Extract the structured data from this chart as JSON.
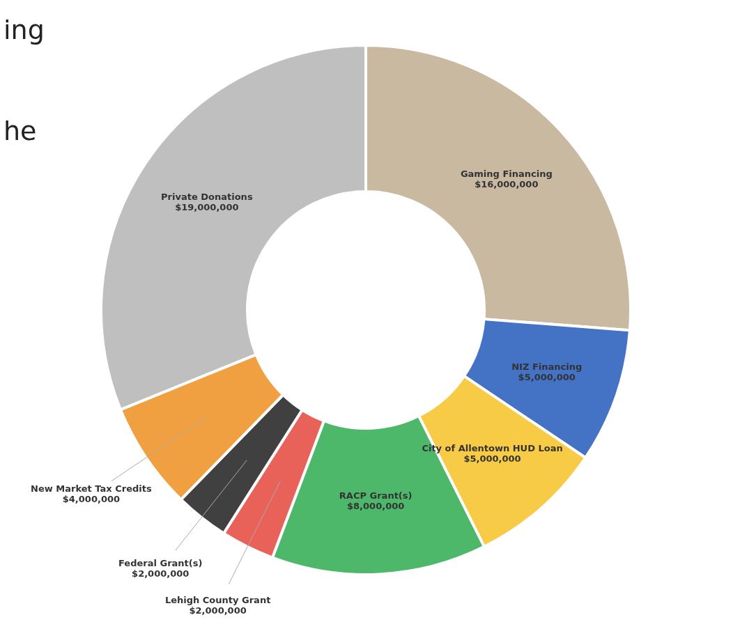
{
  "chart_data": {
    "type": "donut",
    "categories": [
      "Gaming Financing",
      "NIZ Financing",
      "City of Allentown HUD Loan",
      "RACP Grant(s)",
      "Lehigh County Grant",
      "Federal Grant(s)",
      "New Market Tax Credits",
      "Private Donations"
    ],
    "values": [
      16000000,
      5000000,
      5000000,
      8000000,
      2000000,
      2000000,
      4000000,
      19000000
    ],
    "value_labels": [
      "$16,000,000",
      "$5,000,000",
      "$5,000,000",
      "$8,000,000",
      "$2,000,000",
      "$2,000,000",
      "$4,000,000",
      "$19,000,000"
    ],
    "colors": [
      "#c9b9a1",
      "#4472c4",
      "#f7cb45",
      "#4db86a",
      "#e8625a",
      "#404040",
      "#f0a040",
      "#bfbfbf"
    ],
    "annotations": [
      "ing",
      "he"
    ],
    "legend": false
  }
}
